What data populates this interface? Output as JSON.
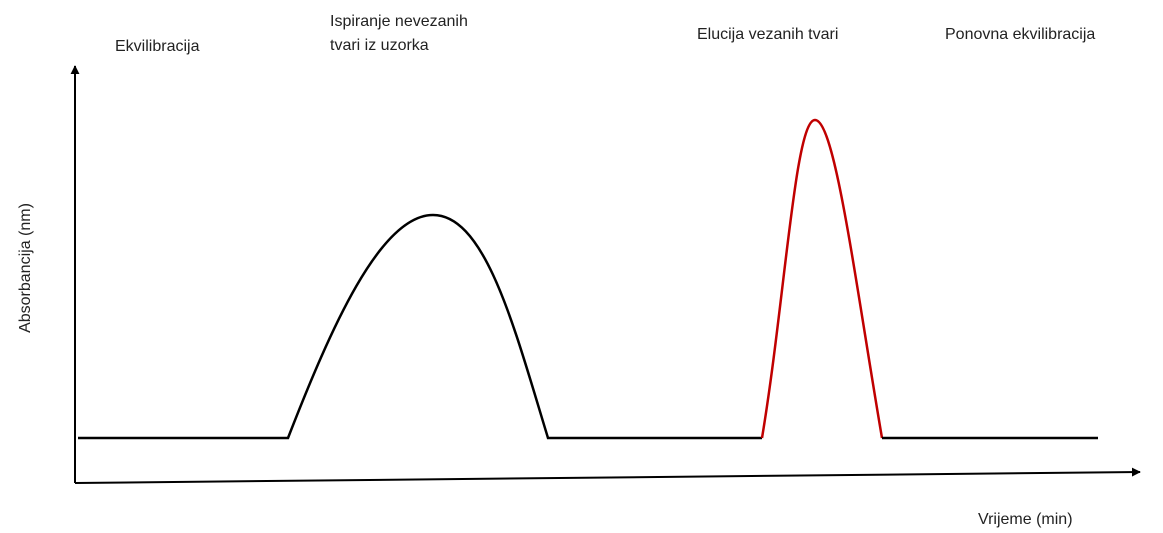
{
  "phases": [
    {
      "lines": [
        "Ekvilibracija"
      ]
    },
    {
      "lines": [
        "Ispiranje nevezanih",
        "tvari iz uzorka"
      ]
    },
    {
      "lines": [
        "Elucija vezanih tvari"
      ]
    },
    {
      "lines": [
        "Ponovna ekvilibracija"
      ]
    }
  ],
  "axes": {
    "y_label": "Absorbancija (nm)",
    "x_label": "Vrijeme (min)"
  }
}
